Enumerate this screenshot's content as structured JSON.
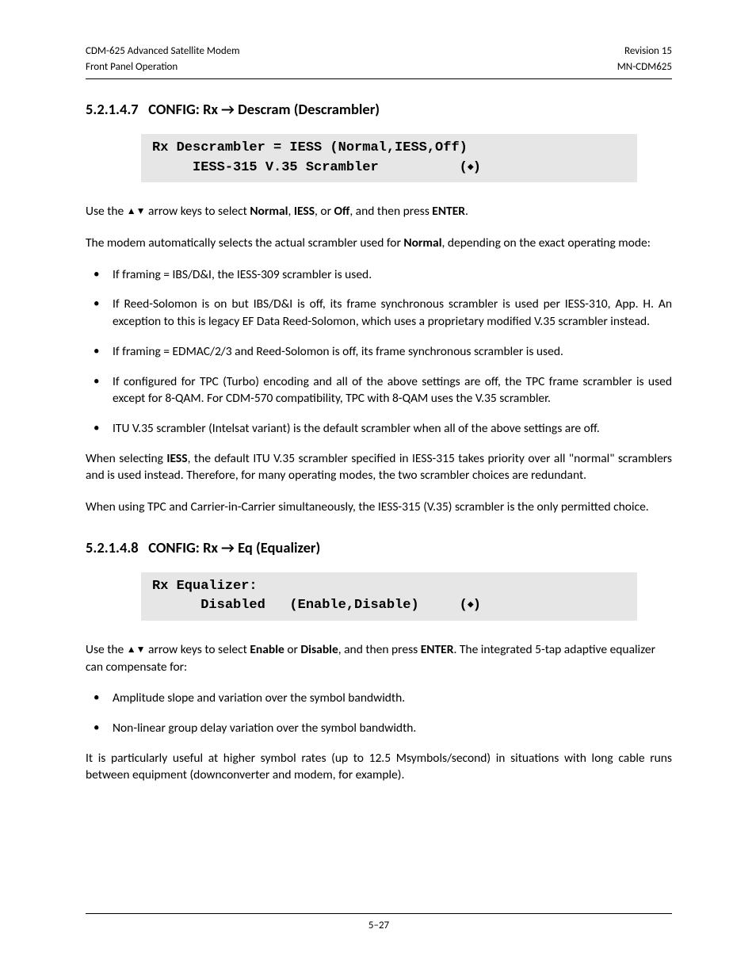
{
  "header": {
    "left1": "CDM-625 Advanced Satellite Modem",
    "left2": "Front Panel Operation",
    "right1": "Revision 15",
    "right2": "MN-CDM625"
  },
  "s1": {
    "hnum": "5.2.1.4.7",
    "htitle_a": "CONFIG: Rx ",
    "htitle_arrow": "→",
    "htitle_b": " Descram (Descrambler)",
    "lcd_l1": "Rx Descrambler = IESS (Normal,IESS,Off)",
    "lcd_l2a": "     IESS-315 V.35 Scrambler          (",
    "lcd_l2b": ")",
    "p1a": "Use the ",
    "p1arrows": "▲▼",
    "p1b": " arrow keys to select ",
    "p1normal": "Normal",
    "p1c": ", ",
    "p1iess": "IESS",
    "p1d": ", or ",
    "p1off": "Off",
    "p1e": ", and then press ",
    "p1enter": "ENTER",
    "p1f": ".",
    "p2a": "The modem automatically selects the actual scrambler used for ",
    "p2normal": "Normal",
    "p2b": ", depending on the exact operating mode:",
    "b1": "If framing = IBS/D&I, the IESS-309 scrambler is used.",
    "b2": "If Reed-Solomon is on but IBS/D&I is off, its frame synchronous scrambler is used per IESS-310, App. H. An exception to this is legacy EF Data Reed-Solomon, which uses a proprietary modified V.35 scrambler instead.",
    "b3": "If framing = EDMAC/2/3 and Reed-Solomon is off, its frame synchronous scrambler is used.",
    "b4": "If configured for TPC (Turbo) encoding and all of the above settings are off, the TPC frame scrambler is used except for 8-QAM. For CDM-570 compatibility, TPC with 8-QAM uses the V.35 scrambler.",
    "b5": "ITU V.35 scrambler (Intelsat variant) is the default scrambler when all of the above settings are off.",
    "p3a": "When selecting ",
    "p3iess": "IESS",
    "p3b": ", the default ITU V.35 scrambler specified in IESS-315 takes priority over all \"normal\" scramblers and is used instead. Therefore, for many operating modes, the two scrambler choices are redundant.",
    "p4": "When using TPC and Carrier-in-Carrier simultaneously, the IESS-315 (V.35) scrambler is the only permitted choice."
  },
  "s2": {
    "hnum": "5.2.1.4.8",
    "htitle_a": "CONFIG: Rx ",
    "htitle_arrow": "→",
    "htitle_b": " Eq (Equalizer)",
    "lcd_l1": "Rx Equalizer:",
    "lcd_l2a": "      Disabled   (Enable,Disable)     (",
    "lcd_l2b": ")",
    "p1a": "Use the ",
    "p1arrows": "▲▼",
    "p1b": " arrow keys to select ",
    "p1enable": "Enable",
    "p1c": " or ",
    "p1disable": "Disable",
    "p1d": ", and then press ",
    "p1enter": "ENTER",
    "p1e": ". The integrated 5-tap adaptive equalizer can compensate for:",
    "b1": "Amplitude slope and variation over the symbol bandwidth.",
    "b2": "Non-linear group delay variation over the symbol bandwidth.",
    "p2": "It is particularly useful at higher symbol rates (up to 12.5 Msymbols/second) in situations with long cable runs between equipment (downconverter and modem, for example)."
  },
  "footer": {
    "page": "5–27"
  },
  "glyphs": {
    "updown": "◆"
  }
}
